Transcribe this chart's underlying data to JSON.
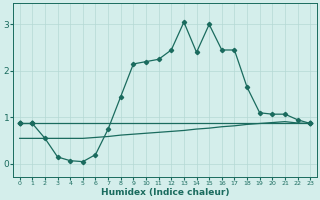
{
  "xlabel": "Humidex (Indice chaleur)",
  "bg_color": "#d4eeeb",
  "line_color": "#1a6b5e",
  "grid_color": "#b5d9d5",
  "x": [
    0,
    1,
    2,
    3,
    4,
    5,
    6,
    7,
    8,
    9,
    10,
    11,
    12,
    13,
    14,
    15,
    16,
    17,
    18,
    19,
    20,
    21,
    22,
    23
  ],
  "line1": [
    0.87,
    0.87,
    0.87,
    0.87,
    0.87,
    0.87,
    0.87,
    0.87,
    0.87,
    0.87,
    0.87,
    0.87,
    0.87,
    0.87,
    0.87,
    0.87,
    0.87,
    0.87,
    0.87,
    0.87,
    0.87,
    0.87,
    0.87,
    0.87
  ],
  "line1_markers": [
    0,
    1,
    23
  ],
  "line2": [
    0.55,
    0.55,
    0.55,
    0.55,
    0.55,
    0.55,
    0.57,
    0.59,
    0.62,
    0.64,
    0.66,
    0.68,
    0.7,
    0.72,
    0.75,
    0.77,
    0.8,
    0.82,
    0.85,
    0.87,
    0.89,
    0.91,
    0.88,
    0.87
  ],
  "line3": [
    0.87,
    0.87,
    0.55,
    0.15,
    0.07,
    0.05,
    0.2,
    0.75,
    1.45,
    2.15,
    2.2,
    2.25,
    2.45,
    3.05,
    2.4,
    3.0,
    2.45,
    2.45,
    1.65,
    1.1,
    1.07,
    1.07,
    0.95,
    0.87
  ],
  "line3_markers": [
    0,
    1,
    2,
    3,
    4,
    5,
    6,
    7,
    8,
    9,
    10,
    11,
    12,
    13,
    14,
    15,
    16,
    17,
    18,
    19,
    20,
    21,
    22,
    23
  ],
  "ylim": [
    -0.28,
    3.45
  ],
  "xlim": [
    -0.5,
    23.5
  ],
  "yticks": [
    0,
    1,
    2,
    3
  ],
  "xticks": [
    0,
    1,
    2,
    3,
    4,
    5,
    6,
    7,
    8,
    9,
    10,
    11,
    12,
    13,
    14,
    15,
    16,
    17,
    18,
    19,
    20,
    21,
    22,
    23
  ]
}
